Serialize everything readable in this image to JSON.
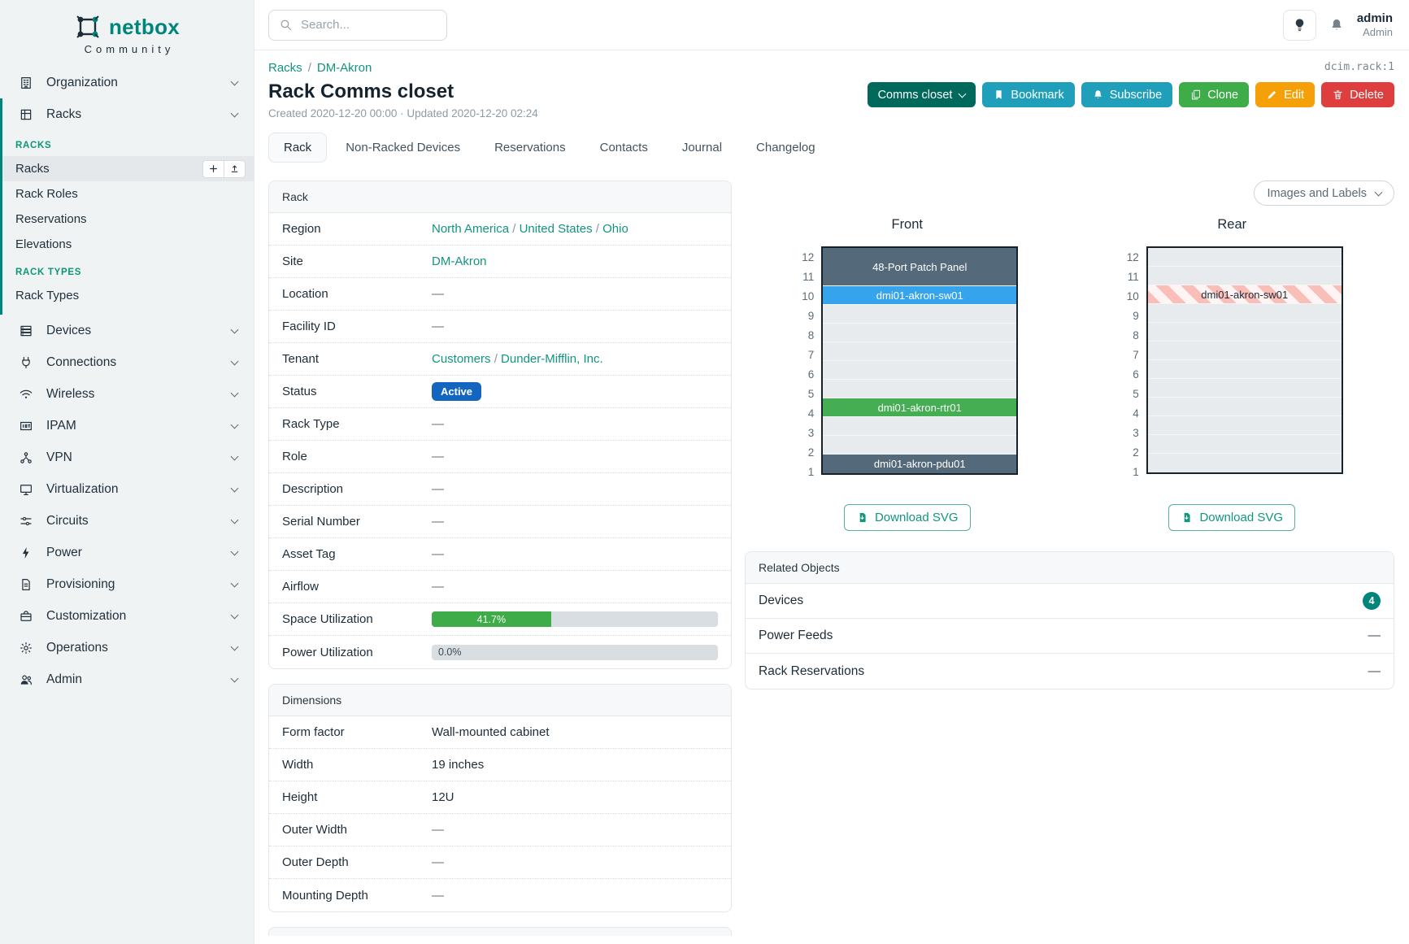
{
  "colors": {
    "brand_teal": "#00857b",
    "link_teal": "#13947f",
    "btn_dark_teal": "#00695c",
    "btn_cyan": "#1f9fba",
    "btn_green": "#3eac49",
    "btn_orange": "#f5a008",
    "btn_red": "#df3e3e",
    "status_active": "#1365c0",
    "progress_green": "#3eac49",
    "slot_slate": "#54697a",
    "slot_blue": "#36a3ed",
    "slot_green": "#45ad52",
    "slot_empty": "#e7ebee",
    "stripe_red": "#f9beb8",
    "stripe_bg": "#fdf4f3"
  },
  "sidebar": {
    "logo": "netbox",
    "logo_sub": "Community",
    "groups": [
      {
        "label": "Organization",
        "icon": "organization-icon"
      },
      {
        "label": "Racks",
        "icon": "racks-icon",
        "expanded": true,
        "sections": [
          {
            "heading": "RACKS",
            "links": [
              {
                "label": "Racks",
                "active": true,
                "buttons": [
                  {
                    "icon": "plus-icon",
                    "name": "add-rack-button"
                  },
                  {
                    "icon": "import-icon",
                    "name": "import-rack-button"
                  }
                ]
              },
              {
                "label": "Rack Roles"
              },
              {
                "label": "Reservations"
              },
              {
                "label": "Elevations"
              }
            ]
          },
          {
            "heading": "RACK TYPES",
            "links": [
              {
                "label": "Rack Types"
              }
            ]
          }
        ]
      },
      {
        "label": "Devices",
        "icon": "devices-icon"
      },
      {
        "label": "Connections",
        "icon": "connections-icon"
      },
      {
        "label": "Wireless",
        "icon": "wireless-icon"
      },
      {
        "label": "IPAM",
        "icon": "ipam-icon"
      },
      {
        "label": "VPN",
        "icon": "vpn-icon"
      },
      {
        "label": "Virtualization",
        "icon": "virtualization-icon"
      },
      {
        "label": "Circuits",
        "icon": "circuits-icon"
      },
      {
        "label": "Power",
        "icon": "power-icon"
      },
      {
        "label": "Provisioning",
        "icon": "provisioning-icon"
      },
      {
        "label": "Customization",
        "icon": "customization-icon"
      },
      {
        "label": "Operations",
        "icon": "operations-icon"
      },
      {
        "label": "Admin",
        "icon": "admin-icon"
      }
    ]
  },
  "topbar": {
    "search_placeholder": "Search...",
    "icons": [
      "search-icon",
      "lightbulb-icon",
      "bell-icon"
    ],
    "username": "admin",
    "user_role": "Admin"
  },
  "page": {
    "breadcrumb": [
      "Racks",
      "DM-Akron"
    ],
    "breadcrumb_separator": "/",
    "object_ref": "dcim.rack:1",
    "title": "Rack Comms closet",
    "meta": "Created 2020-12-20 00:00 · Updated 2020-12-20 02:24",
    "actions": [
      {
        "label": "Comms closet",
        "style": "btn_dark_teal",
        "caret": true,
        "name": "comms-closet-dropdown"
      },
      {
        "label": "Bookmark",
        "style": "btn_cyan",
        "icon": "bookmark-icon",
        "name": "bookmark-button"
      },
      {
        "label": "Subscribe",
        "style": "btn_cyan",
        "icon": "bell-icon",
        "name": "subscribe-button"
      },
      {
        "label": "Clone",
        "style": "btn_green",
        "icon": "copy-icon",
        "name": "clone-button"
      },
      {
        "label": "Edit",
        "style": "btn_orange",
        "icon": "pencil-icon",
        "name": "edit-button"
      },
      {
        "label": "Delete",
        "style": "btn_red",
        "icon": "trash-icon",
        "name": "delete-button"
      }
    ],
    "tabs": [
      {
        "label": "Rack",
        "active": true
      },
      {
        "label": "Non-Racked Devices"
      },
      {
        "label": "Reservations"
      },
      {
        "label": "Contacts"
      },
      {
        "label": "Journal"
      },
      {
        "label": "Changelog"
      }
    ]
  },
  "rack_panel": {
    "title": "Rack",
    "link_separator": "/",
    "dash": "—",
    "rows": [
      {
        "label": "Region",
        "type": "links",
        "parts": [
          "North America",
          "United States",
          "Ohio"
        ]
      },
      {
        "label": "Site",
        "type": "links",
        "parts": [
          "DM-Akron"
        ]
      },
      {
        "label": "Location",
        "type": "dash",
        "value": "—"
      },
      {
        "label": "Facility ID",
        "type": "dash",
        "value": "—"
      },
      {
        "label": "Tenant",
        "type": "links",
        "parts": [
          "Customers",
          "Dunder-Mifflin, Inc."
        ]
      },
      {
        "label": "Status",
        "type": "badge",
        "value": "Active"
      },
      {
        "label": "Rack Type",
        "type": "dash",
        "value": "—"
      },
      {
        "label": "Role",
        "type": "dash",
        "value": "—"
      },
      {
        "label": "Description",
        "type": "dash",
        "value": "—"
      },
      {
        "label": "Serial Number",
        "type": "dash",
        "value": "—"
      },
      {
        "label": "Asset Tag",
        "type": "dash",
        "value": "—"
      },
      {
        "label": "Airflow",
        "type": "dash",
        "value": "—"
      },
      {
        "label": "Space Utilization",
        "type": "progress",
        "value": "41.7%",
        "percent": 41.7
      },
      {
        "label": "Power Utilization",
        "type": "progress",
        "value": "0.0%",
        "percent": 0
      }
    ]
  },
  "dimensions_panel": {
    "title": "Dimensions",
    "rows": [
      {
        "label": "Form factor",
        "type": "text",
        "value": "Wall-mounted cabinet"
      },
      {
        "label": "Width",
        "type": "text",
        "value": "19 inches"
      },
      {
        "label": "Height",
        "type": "text",
        "value": "12U"
      },
      {
        "label": "Outer Width",
        "type": "dash",
        "value": "—"
      },
      {
        "label": "Outer Depth",
        "type": "dash",
        "value": "—"
      },
      {
        "label": "Mounting Depth",
        "type": "dash",
        "value": "—"
      }
    ]
  },
  "elevations": {
    "view_selector": "Images and Labels",
    "download_label": "Download SVG",
    "unit_numbers": [
      12,
      11,
      10,
      9,
      8,
      7,
      6,
      5,
      4,
      3,
      2,
      1
    ],
    "front": {
      "title": "Front",
      "slots": [
        {
          "span": 2,
          "label": "48-Port Patch Panel",
          "fill": "slate"
        },
        {
          "span": 1,
          "label": "dmi01-akron-sw01",
          "fill": "blue"
        },
        {
          "span": 1,
          "fill": "empty"
        },
        {
          "span": 1,
          "fill": "empty"
        },
        {
          "span": 1,
          "fill": "empty"
        },
        {
          "span": 1,
          "fill": "empty"
        },
        {
          "span": 1,
          "fill": "empty"
        },
        {
          "span": 1,
          "label": "dmi01-akron-rtr01",
          "fill": "green"
        },
        {
          "span": 1,
          "fill": "empty"
        },
        {
          "span": 1,
          "fill": "empty"
        },
        {
          "span": 1,
          "label": "dmi01-akron-pdu01",
          "fill": "slate"
        }
      ]
    },
    "rear": {
      "title": "Rear",
      "slots": [
        {
          "span": 1,
          "fill": "empty"
        },
        {
          "span": 1,
          "fill": "empty"
        },
        {
          "span": 1,
          "label": "dmi01-akron-sw01",
          "fill": "striped"
        },
        {
          "span": 1,
          "fill": "empty"
        },
        {
          "span": 1,
          "fill": "empty"
        },
        {
          "span": 1,
          "fill": "empty"
        },
        {
          "span": 1,
          "fill": "empty"
        },
        {
          "span": 1,
          "fill": "empty"
        },
        {
          "span": 1,
          "fill": "empty"
        },
        {
          "span": 1,
          "fill": "empty"
        },
        {
          "span": 1,
          "fill": "empty"
        },
        {
          "span": 1,
          "fill": "empty"
        }
      ]
    }
  },
  "related_panel": {
    "title": "Related Objects",
    "rows": [
      {
        "label": "Devices",
        "type": "count",
        "value": "4"
      },
      {
        "label": "Power Feeds",
        "type": "dash",
        "value": "—"
      },
      {
        "label": "Rack Reservations",
        "type": "dash",
        "value": "—"
      }
    ]
  }
}
